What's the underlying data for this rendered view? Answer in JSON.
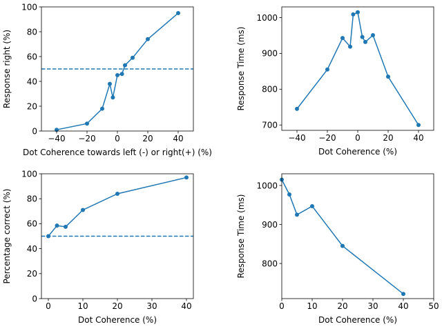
{
  "colors": {
    "series": "#1f77b4",
    "axes": "#000000",
    "background": "#ffffff"
  },
  "chart_data": [
    {
      "type": "line",
      "title": "",
      "xlabel": "Dot Coherence towards left (-) or right(+) (%)",
      "ylabel": "Response right (%)",
      "xlim": [
        -50,
        50
      ],
      "ylim": [
        0,
        100
      ],
      "xticks": [
        -40,
        -20,
        0,
        20,
        40
      ],
      "yticks": [
        0,
        20,
        40,
        60,
        80,
        100
      ],
      "x": [
        -40,
        -20,
        -10,
        -5,
        -3,
        0,
        3,
        5,
        10,
        20,
        40
      ],
      "y": [
        1,
        6,
        18,
        38,
        27,
        45,
        46,
        53,
        59,
        74,
        95
      ],
      "hline": {
        "y": 50,
        "style": "dashed"
      }
    },
    {
      "type": "line",
      "title": "",
      "xlabel": "Dot Coherence (%)",
      "ylabel": "Response Time (ms)",
      "xlim": [
        -50,
        50
      ],
      "ylim": [
        685,
        1030
      ],
      "xticks": [
        -40,
        -20,
        0,
        20,
        40
      ],
      "yticks": [
        700,
        800,
        900,
        1000
      ],
      "x": [
        -40,
        -20,
        -10,
        -5,
        -3,
        0,
        3,
        5,
        10,
        20,
        40
      ],
      "y": [
        745,
        855,
        943,
        919,
        1009,
        1015,
        946,
        932,
        951,
        835,
        700
      ]
    },
    {
      "type": "line",
      "title": "",
      "xlabel": "Dot Coherence (%)",
      "ylabel": "Percentage correct (%)",
      "xlim": [
        -2,
        42
      ],
      "ylim": [
        0,
        100
      ],
      "xticks": [
        0,
        10,
        20,
        30,
        40
      ],
      "yticks": [
        0,
        20,
        40,
        60,
        80,
        100
      ],
      "x": [
        0,
        2.5,
        5,
        10,
        20,
        40
      ],
      "y": [
        50,
        58.5,
        57.5,
        71,
        84,
        97
      ],
      "hline": {
        "y": 50,
        "style": "dashed"
      }
    },
    {
      "type": "line",
      "title": "",
      "xlabel": "Dot Coherence (%)",
      "ylabel": "Response Time (ms)",
      "xlim": [
        0,
        50
      ],
      "ylim": [
        710,
        1030
      ],
      "xticks": [
        0,
        10,
        20,
        30,
        40,
        50
      ],
      "yticks": [
        800,
        900,
        1000
      ],
      "x": [
        0,
        2.5,
        5,
        10,
        20,
        40
      ],
      "y": [
        1015,
        977,
        925,
        947,
        845,
        722
      ]
    }
  ]
}
